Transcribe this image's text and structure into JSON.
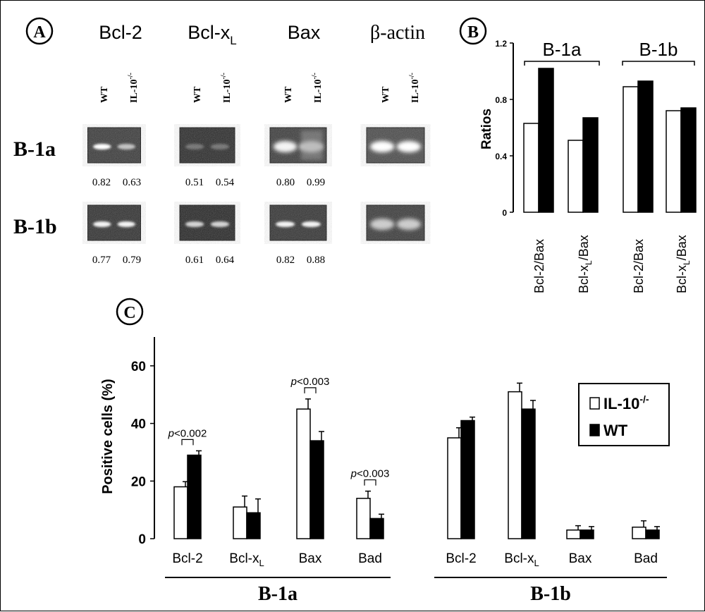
{
  "panels": {
    "A": {
      "label": "A",
      "columns": [
        {
          "name": "Bcl-2",
          "base": "Bcl-2",
          "sub": ""
        },
        {
          "name": "Bcl-xL",
          "base": "Bcl-x",
          "sub": "L"
        },
        {
          "name": "Bax",
          "base": "Bax",
          "sub": ""
        },
        {
          "name": "β-actin",
          "base": "β-actin",
          "sub": ""
        }
      ],
      "lanes": {
        "wt": "WT",
        "ko_base": "IL-10",
        "ko_sup": "-/-"
      },
      "rows": [
        {
          "label": "B-1a",
          "values": [
            [
              "0.82",
              "0.63"
            ],
            [
              "0.51",
              "0.54"
            ],
            [
              "0.80",
              "0.99"
            ],
            null
          ]
        },
        {
          "label": "B-1b",
          "values": [
            [
              "0.77",
              "0.79"
            ],
            [
              "0.61",
              "0.64"
            ],
            [
              "0.82",
              "0.88"
            ],
            null
          ]
        }
      ]
    },
    "B": {
      "label": "B",
      "ylabel": "Ratios",
      "groups": [
        {
          "base": "B-1a"
        },
        {
          "base": "B-1b"
        }
      ]
    },
    "C": {
      "label": "C",
      "ylabel": "Positive cells (%)",
      "groups": [
        "B-1a",
        "B-1b"
      ],
      "legend": {
        "ko_base": "IL-10",
        "ko_sup": "-/-",
        "wt": "WT"
      },
      "pvalues": [
        {
          "category_index": 0,
          "text": "p<0.002"
        },
        {
          "category_index": 2,
          "text": "p<0.003"
        },
        {
          "category_index": 3,
          "text": "p<0.003"
        }
      ]
    }
  },
  "chart_data": [
    {
      "type": "bar",
      "panel": "B",
      "ylabel": "Ratios",
      "ylim": [
        0,
        1.2
      ],
      "yticks": [
        "0",
        "0.4",
        "0.8",
        "1.2"
      ],
      "groups": [
        "B-1a",
        "B-1b"
      ],
      "categories": [
        {
          "base": "Bcl-2/Bax",
          "sub": ""
        },
        {
          "base": "Bcl-x",
          "sub": "L",
          "tail": "/Bax"
        },
        {
          "base": "Bcl-2/Bax",
          "sub": ""
        },
        {
          "base": "Bcl-x",
          "sub": "L",
          "tail": "/Bax"
        }
      ],
      "series": [
        {
          "key": "ko",
          "fill": "#ffffff",
          "values": [
            0.63,
            0.51,
            0.89,
            0.72
          ]
        },
        {
          "key": "wt",
          "fill": "#000000",
          "values": [
            1.02,
            0.67,
            0.93,
            0.74
          ]
        }
      ]
    },
    {
      "type": "bar",
      "panel": "C",
      "ylabel": "Positive cells (%)",
      "ylim": [
        0,
        70
      ],
      "yticks": [
        "0",
        "20",
        "40",
        "60"
      ],
      "groups": [
        "B-1a",
        "B-1b"
      ],
      "categories": [
        {
          "base": "Bcl-2",
          "sub": ""
        },
        {
          "base": "Bcl-x",
          "sub": "L"
        },
        {
          "base": "Bax",
          "sub": ""
        },
        {
          "base": "Bad",
          "sub": ""
        },
        {
          "base": "Bcl-2",
          "sub": ""
        },
        {
          "base": "Bcl-x",
          "sub": "L"
        },
        {
          "base": "Bax",
          "sub": ""
        },
        {
          "base": "Bad",
          "sub": ""
        }
      ],
      "series": [
        {
          "name": "IL-10-/-",
          "key": "ko",
          "fill": "#ffffff",
          "values": [
            18,
            11,
            45,
            14,
            35,
            51,
            3,
            4
          ],
          "errors": [
            1.8,
            3.8,
            3.5,
            2.5,
            3.5,
            3,
            1.5,
            2.2
          ]
        },
        {
          "name": "WT",
          "key": "wt",
          "fill": "#000000",
          "values": [
            29,
            9,
            34,
            7,
            41,
            45,
            3,
            3
          ],
          "errors": [
            1.5,
            4.8,
            3.2,
            1.5,
            1.2,
            3,
            1.2,
            1.2
          ]
        }
      ]
    }
  ]
}
